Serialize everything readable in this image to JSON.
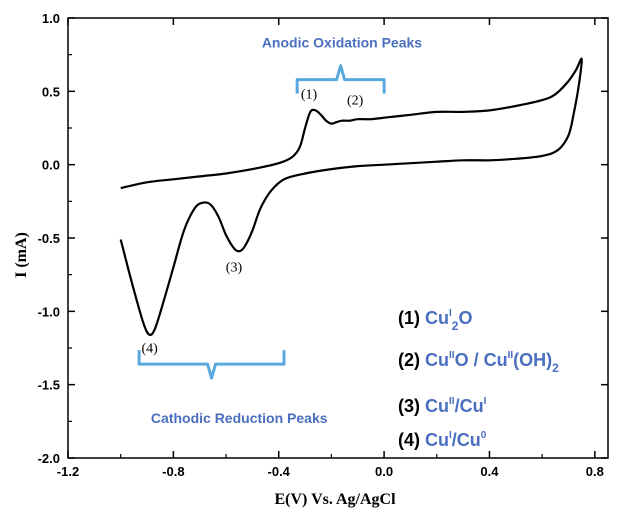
{
  "chart_data": {
    "type": "line",
    "xlabel": "E(V)  Vs. Ag/AgCl",
    "ylabel": "I (mA)",
    "xlim": [
      -1.2,
      0.85
    ],
    "ylim": [
      -2.0,
      1.0
    ],
    "x_ticks": [
      "-1.2",
      "-0.8",
      "-0.4",
      "0.0",
      "0.4",
      "0.8"
    ],
    "y_ticks": [
      "1.0",
      "0.5",
      "0.0",
      "-0.5",
      "-1.0",
      "-1.5",
      "-2.0"
    ],
    "grid": false,
    "line_color": "#000000",
    "annotation_color": "#4a6fbf",
    "bracket_color": "#5aa9de",
    "series": [
      {
        "points": [
          [
            -1.0,
            -0.16
          ],
          [
            -0.9,
            -0.12
          ],
          [
            -0.8,
            -0.1
          ],
          [
            -0.7,
            -0.08
          ],
          [
            -0.6,
            -0.06
          ],
          [
            -0.5,
            -0.03
          ],
          [
            -0.4,
            0.01
          ],
          [
            -0.35,
            0.05
          ],
          [
            -0.32,
            0.12
          ],
          [
            -0.3,
            0.25
          ],
          [
            -0.28,
            0.36
          ],
          [
            -0.26,
            0.37
          ],
          [
            -0.24,
            0.34
          ],
          [
            -0.22,
            0.3
          ],
          [
            -0.2,
            0.28
          ],
          [
            -0.18,
            0.29
          ],
          [
            -0.16,
            0.3
          ],
          [
            -0.13,
            0.3
          ],
          [
            -0.1,
            0.31
          ],
          [
            -0.05,
            0.31
          ],
          [
            0.0,
            0.32
          ],
          [
            0.1,
            0.34
          ],
          [
            0.2,
            0.36
          ],
          [
            0.3,
            0.36
          ],
          [
            0.4,
            0.37
          ],
          [
            0.5,
            0.4
          ],
          [
            0.6,
            0.44
          ],
          [
            0.65,
            0.48
          ],
          [
            0.7,
            0.57
          ],
          [
            0.73,
            0.65
          ],
          [
            0.75,
            0.72
          ],
          [
            0.74,
            0.55
          ],
          [
            0.72,
            0.35
          ],
          [
            0.7,
            0.2
          ],
          [
            0.66,
            0.1
          ],
          [
            0.6,
            0.06
          ],
          [
            0.5,
            0.04
          ],
          [
            0.4,
            0.03
          ],
          [
            0.3,
            0.03
          ],
          [
            0.2,
            0.02
          ],
          [
            0.1,
            0.01
          ],
          [
            0.0,
            0.0
          ],
          [
            -0.1,
            -0.01
          ],
          [
            -0.2,
            -0.03
          ],
          [
            -0.3,
            -0.06
          ],
          [
            -0.38,
            -0.1
          ],
          [
            -0.43,
            -0.18
          ],
          [
            -0.47,
            -0.3
          ],
          [
            -0.5,
            -0.45
          ],
          [
            -0.53,
            -0.56
          ],
          [
            -0.55,
            -0.59
          ],
          [
            -0.57,
            -0.57
          ],
          [
            -0.6,
            -0.48
          ],
          [
            -0.63,
            -0.35
          ],
          [
            -0.66,
            -0.27
          ],
          [
            -0.69,
            -0.26
          ],
          [
            -0.72,
            -0.3
          ],
          [
            -0.76,
            -0.45
          ],
          [
            -0.8,
            -0.7
          ],
          [
            -0.84,
            -0.95
          ],
          [
            -0.87,
            -1.12
          ],
          [
            -0.89,
            -1.16
          ],
          [
            -0.91,
            -1.1
          ],
          [
            -0.94,
            -0.92
          ],
          [
            -0.97,
            -0.72
          ],
          [
            -1.0,
            -0.51
          ]
        ]
      }
    ],
    "peak_labels": [
      {
        "text": "(1)",
        "x": -0.285,
        "y": 0.45
      },
      {
        "text": "(2)",
        "x": -0.11,
        "y": 0.41
      },
      {
        "text": "(3)",
        "x": -0.57,
        "y": -0.73
      },
      {
        "text": "(4)",
        "x": -0.89,
        "y": -1.28
      }
    ],
    "anodic": {
      "text": "Anodic Oxidation Peaks",
      "bracket_x": [
        -0.33,
        0.0
      ],
      "bracket_y": 0.58,
      "label_x": -0.16,
      "label_y": 0.8
    },
    "cathodic": {
      "text": "Cathodic Reduction Peaks",
      "bracket_x": [
        -0.93,
        -0.38
      ],
      "bracket_y": -1.36,
      "label_x": -0.55,
      "label_y": -1.76
    },
    "legend": [
      {
        "num": "(1) ",
        "parts": [
          [
            "Cu",
            ""
          ],
          [
            "I",
            "sup"
          ],
          [
            "2",
            "sub"
          ],
          [
            "O",
            ""
          ]
        ]
      },
      {
        "num": "(2) ",
        "parts": [
          [
            "Cu",
            ""
          ],
          [
            "II",
            "sup"
          ],
          [
            "O / Cu",
            ""
          ],
          [
            "II",
            "sup"
          ],
          [
            "(OH)",
            ""
          ],
          [
            "2",
            "sub"
          ]
        ]
      },
      {
        "num": "(3) ",
        "parts": [
          [
            "Cu",
            ""
          ],
          [
            "II",
            "sup"
          ],
          [
            "/Cu",
            ""
          ],
          [
            "I",
            "sup"
          ]
        ]
      },
      {
        "num": "(4) ",
        "parts": [
          [
            "Cu",
            ""
          ],
          [
            "I",
            "sup"
          ],
          [
            "/Cu",
            ""
          ],
          [
            "0",
            "sup"
          ]
        ]
      }
    ]
  }
}
